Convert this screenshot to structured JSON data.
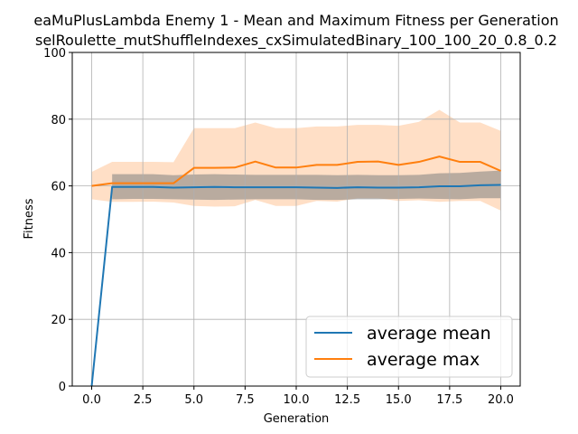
{
  "chart_data": {
    "type": "line",
    "title": "eaMuPlusLambda Enemy 1 - Mean and Maximum Fitness per Generation",
    "subtitle": "selRoulette_mutShuffleIndexes_cxSimulatedBinary_100_100_20_0.8_0.2",
    "xlabel": "Generation",
    "ylabel": "Fitness",
    "xlim": [
      -0.95,
      20.95
    ],
    "ylim": [
      0,
      100
    ],
    "x_ticks": [
      0.0,
      2.5,
      5.0,
      7.5,
      10.0,
      12.5,
      15.0,
      17.5,
      20.0
    ],
    "x_tick_labels": [
      "0.0",
      "2.5",
      "5.0",
      "7.5",
      "10.0",
      "12.5",
      "15.0",
      "17.5",
      "20.0"
    ],
    "y_ticks": [
      0,
      20,
      40,
      60,
      80,
      100
    ],
    "y_tick_labels": [
      "0",
      "20",
      "40",
      "60",
      "80",
      "100"
    ],
    "grid": true,
    "legend_position": "lower-right",
    "x": [
      0,
      1,
      2,
      3,
      4,
      5,
      6,
      7,
      8,
      9,
      10,
      11,
      12,
      13,
      14,
      15,
      16,
      17,
      18,
      19,
      20
    ],
    "series": [
      {
        "name": "average mean",
        "color": "#1f77b4",
        "band_color": "#808080",
        "values": [
          0,
          59.7,
          59.7,
          59.7,
          59.5,
          59.6,
          59.7,
          59.6,
          59.6,
          59.6,
          59.6,
          59.5,
          59.4,
          59.6,
          59.5,
          59.5,
          59.6,
          59.9,
          59.9,
          60.2,
          60.3
        ],
        "band_low": [
          0,
          56.0,
          56.1,
          56.1,
          56.0,
          55.9,
          55.8,
          55.9,
          56.0,
          56.0,
          56.0,
          55.8,
          55.8,
          56.0,
          56.0,
          56.1,
          56.2,
          56.1,
          56.0,
          56.3,
          56.3
        ],
        "band_high": [
          0,
          63.5,
          63.5,
          63.5,
          63.2,
          63.4,
          63.5,
          63.4,
          63.3,
          63.3,
          63.3,
          63.3,
          63.2,
          63.3,
          63.2,
          63.2,
          63.3,
          63.8,
          63.9,
          64.3,
          64.6
        ]
      },
      {
        "name": "average max",
        "color": "#ff7f0e",
        "band_color": "#ffdfc6",
        "values": [
          60.0,
          60.8,
          60.8,
          60.8,
          60.8,
          65.4,
          65.4,
          65.5,
          67.3,
          65.5,
          65.5,
          66.3,
          66.3,
          67.2,
          67.3,
          66.3,
          67.2,
          68.8,
          67.2,
          67.2,
          64.5
        ],
        "band_low": [
          56.0,
          55.2,
          55.2,
          55.3,
          55.0,
          54.0,
          53.8,
          53.9,
          55.8,
          54.0,
          54.0,
          55.5,
          55.3,
          56.3,
          56.3,
          55.5,
          55.7,
          55.2,
          55.5,
          55.5,
          52.6
        ],
        "band_high": [
          64.2,
          67.2,
          67.2,
          67.2,
          67.1,
          77.3,
          77.3,
          77.3,
          79.0,
          77.3,
          77.3,
          77.8,
          77.8,
          78.3,
          78.3,
          78.0,
          79.2,
          82.8,
          79.0,
          79.0,
          76.5
        ]
      }
    ]
  }
}
